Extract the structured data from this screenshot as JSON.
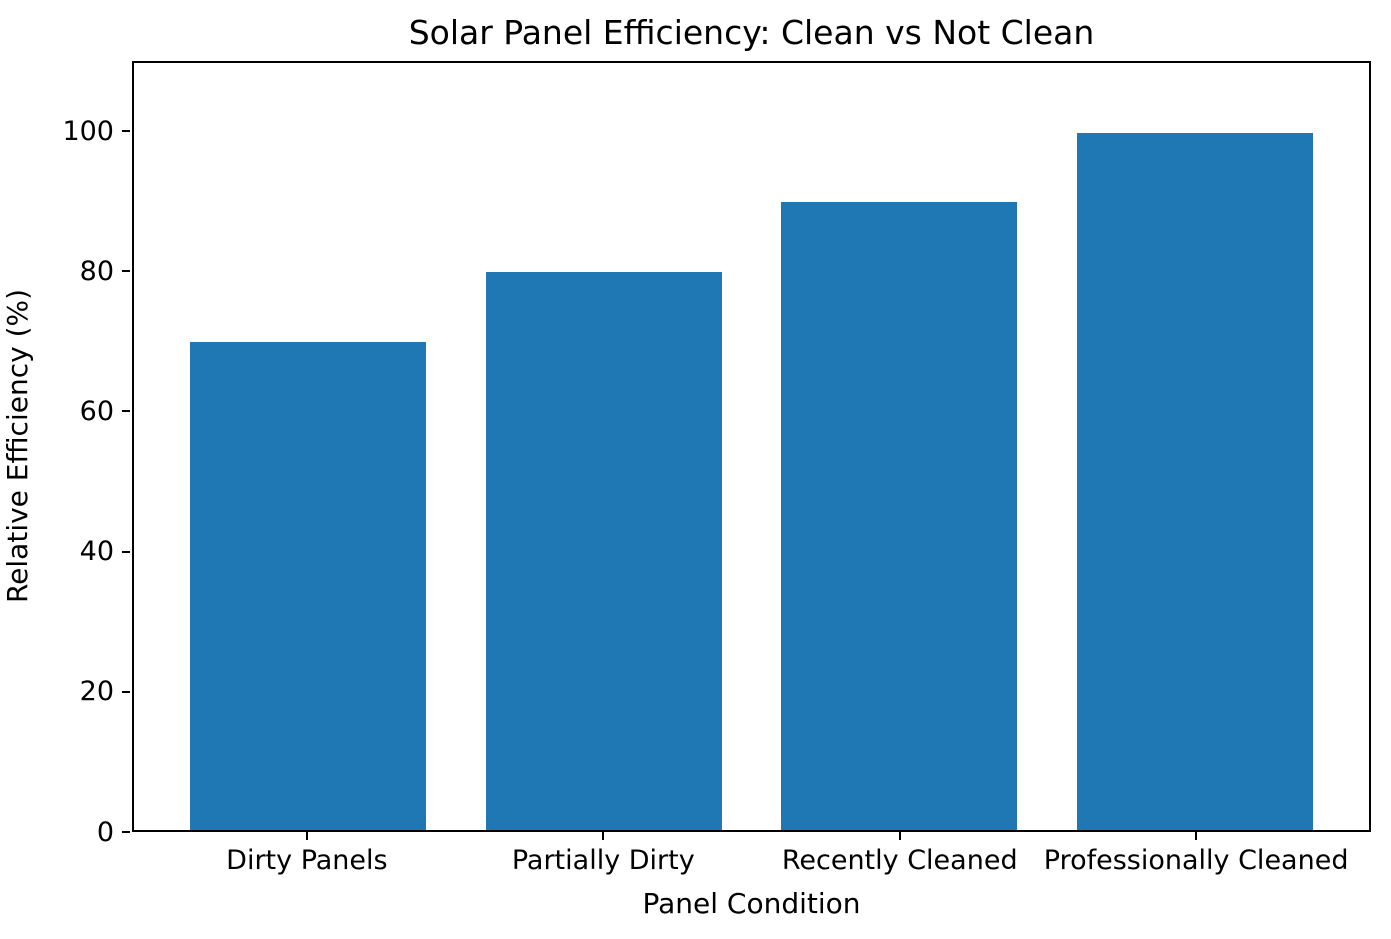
{
  "chart_data": {
    "type": "bar",
    "title": "Solar Panel Efficiency: Clean vs Not Clean",
    "xlabel": "Panel Condition",
    "ylabel": "Relative Efficiency (%)",
    "categories": [
      "Dirty Panels",
      "Partially Dirty",
      "Recently Cleaned",
      "Professionally Cleaned"
    ],
    "values": [
      70,
      80,
      90,
      100
    ],
    "yticks": [
      0,
      20,
      40,
      60,
      80,
      100
    ],
    "ylim": [
      0,
      110
    ],
    "bar_color": "#1f77b4",
    "background_color": "#ffffff",
    "text_color": "#000000",
    "grid": "off",
    "legend": "none",
    "bar_width_fraction": 0.8,
    "x_axis_units_range": 4.18,
    "x_axis_left_margin_units": 0.59
  }
}
